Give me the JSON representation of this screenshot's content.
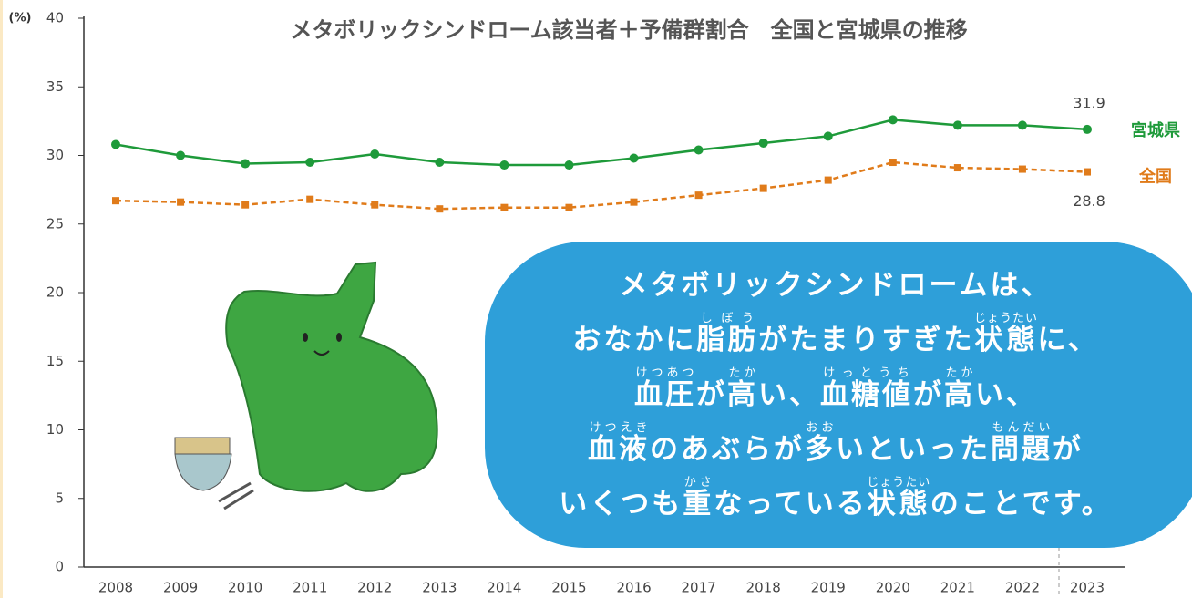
{
  "chart_data": {
    "type": "line",
    "title": "メタボリックシンドローム該当者＋予備群割合　全国と宮城県の推移",
    "y_unit": "(%)",
    "categories": [
      "2008",
      "2009",
      "2010",
      "2011",
      "2012",
      "2013",
      "2014",
      "2015",
      "2016",
      "2017",
      "2018",
      "2019",
      "2020",
      "2021",
      "2022",
      "2023"
    ],
    "series": [
      {
        "name": "宮城県",
        "color": "#1e9a3a",
        "dash": false,
        "marker": "circle",
        "values": [
          30.8,
          30.0,
          29.4,
          29.5,
          30.1,
          29.5,
          29.3,
          29.3,
          29.8,
          30.4,
          30.9,
          31.4,
          32.6,
          32.2,
          32.2,
          31.9
        ]
      },
      {
        "name": "全国",
        "color": "#e07b1a",
        "dash": true,
        "marker": "square",
        "values": [
          26.7,
          26.6,
          26.4,
          26.8,
          26.4,
          26.1,
          26.2,
          26.2,
          26.6,
          27.1,
          27.6,
          28.2,
          29.5,
          29.1,
          29.0,
          28.8
        ]
      }
    ],
    "ylim": [
      0,
      40
    ],
    "yticks": [
      0,
      5,
      10,
      15,
      20,
      25,
      30,
      35,
      40
    ],
    "grid": false,
    "callout": [
      [
        "メタボリックシンドロームは、"
      ],
      [
        "おなかに",
        {
          "text": "脂肪",
          "ruby": "しぼう"
        },
        "がたまりすぎた",
        {
          "text": "状態",
          "ruby": "じょうたい"
        },
        "に、"
      ],
      [
        {
          "text": "血圧",
          "ruby": "けつあつ"
        },
        "が",
        {
          "text": "高",
          "ruby": "たか"
        },
        "い、",
        {
          "text": "血糖値",
          "ruby": "けっとうち"
        },
        "が",
        {
          "text": "高",
          "ruby": "たか"
        },
        "い、"
      ],
      [
        {
          "text": "血液",
          "ruby": "けつえき"
        },
        "のあぶらが",
        {
          "text": "多",
          "ruby": "おお"
        },
        "いといった",
        {
          "text": "問題",
          "ruby": "もんだい"
        },
        "が"
      ],
      [
        "いくつも",
        {
          "text": "重",
          "ruby": "かさ"
        },
        "なっている",
        {
          "text": "状態",
          "ruby": "じょうたい"
        },
        "のことです。"
      ]
    ]
  }
}
